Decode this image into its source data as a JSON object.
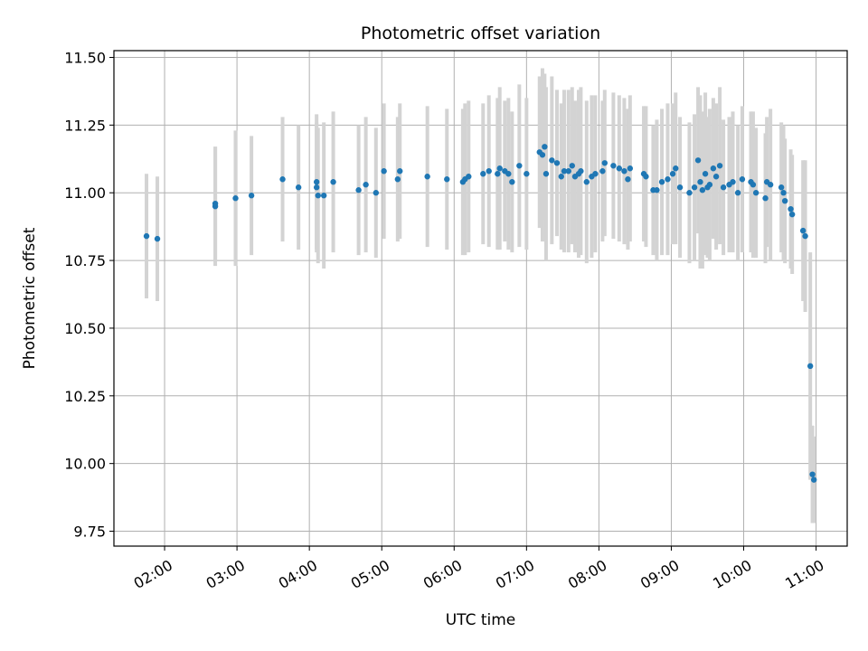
{
  "chart_data": {
    "type": "scatter",
    "title": "Photometric offset variation",
    "xlabel": "UTC time",
    "ylabel": "Photometric offset",
    "x_unit": "hours (UTC)",
    "xlim": [
      1.3,
      11.43
    ],
    "ylim": [
      9.695,
      11.525
    ],
    "xticks": [
      2,
      3,
      4,
      5,
      6,
      7,
      8,
      9,
      10,
      11
    ],
    "xtick_labels": [
      "02:00",
      "03:00",
      "04:00",
      "05:00",
      "06:00",
      "07:00",
      "08:00",
      "09:00",
      "10:00",
      "11:00"
    ],
    "yticks": [
      9.75,
      10.0,
      10.25,
      10.5,
      10.75,
      11.0,
      11.25,
      11.5
    ],
    "ytick_labels": [
      "9.75",
      "10.00",
      "10.25",
      "10.50",
      "10.75",
      "11.00",
      "11.25",
      "11.50"
    ],
    "grid": true,
    "colors": {
      "point": "#1f77b4",
      "errorbar": "#d3d3d3",
      "grid": "#b0b0b0"
    },
    "series": [
      {
        "name": "offset",
        "x": [
          1.75,
          1.9,
          2.7,
          2.7,
          2.98,
          3.2,
          3.63,
          3.85,
          4.1,
          4.1,
          4.12,
          4.2,
          4.33,
          4.68,
          4.78,
          4.92,
          5.03,
          5.22,
          5.25,
          5.63,
          5.9,
          6.12,
          6.15,
          6.2,
          6.4,
          6.48,
          6.6,
          6.63,
          6.7,
          6.75,
          6.8,
          6.9,
          7.0,
          7.18,
          7.22,
          7.25,
          7.27,
          7.35,
          7.42,
          7.48,
          7.52,
          7.58,
          7.63,
          7.67,
          7.72,
          7.75,
          7.83,
          7.9,
          7.95,
          8.05,
          8.08,
          8.2,
          8.28,
          8.35,
          8.4,
          8.43,
          8.62,
          8.65,
          8.75,
          8.8,
          8.87,
          8.95,
          9.02,
          9.06,
          9.12,
          9.25,
          9.32,
          9.37,
          9.4,
          9.43,
          9.47,
          9.5,
          9.53,
          9.58,
          9.62,
          9.67,
          9.72,
          9.8,
          9.85,
          9.92,
          9.98,
          10.1,
          10.13,
          10.17,
          10.3,
          10.32,
          10.37,
          10.52,
          10.55,
          10.57,
          10.65,
          10.67,
          10.82,
          10.85,
          10.92,
          10.95,
          10.97
        ],
        "y": [
          10.84,
          10.83,
          10.95,
          10.96,
          10.98,
          10.99,
          11.05,
          11.02,
          11.04,
          11.02,
          10.99,
          10.99,
          11.04,
          11.01,
          11.03,
          11.0,
          11.08,
          11.05,
          11.08,
          11.06,
          11.05,
          11.04,
          11.05,
          11.06,
          11.07,
          11.08,
          11.07,
          11.09,
          11.08,
          11.07,
          11.04,
          11.1,
          11.07,
          11.15,
          11.14,
          11.17,
          11.07,
          11.12,
          11.11,
          11.06,
          11.08,
          11.08,
          11.1,
          11.06,
          11.07,
          11.08,
          11.04,
          11.06,
          11.07,
          11.08,
          11.11,
          11.1,
          11.09,
          11.08,
          11.05,
          11.09,
          11.07,
          11.06,
          11.01,
          11.01,
          11.04,
          11.05,
          11.07,
          11.09,
          11.02,
          11.0,
          11.02,
          11.12,
          11.04,
          11.01,
          11.07,
          11.02,
          11.03,
          11.09,
          11.06,
          11.1,
          11.02,
          11.03,
          11.04,
          11.0,
          11.05,
          11.04,
          11.03,
          11.0,
          10.98,
          11.04,
          11.03,
          11.02,
          11.0,
          10.97,
          10.94,
          10.92,
          10.86,
          10.84,
          10.36,
          9.96,
          9.94
        ],
        "yerr": [
          0.23,
          0.23,
          0.22,
          0.21,
          0.25,
          0.22,
          0.23,
          0.23,
          0.25,
          0.24,
          0.25,
          0.27,
          0.26,
          0.24,
          0.25,
          0.24,
          0.25,
          0.23,
          0.25,
          0.26,
          0.26,
          0.27,
          0.28,
          0.28,
          0.26,
          0.28,
          0.28,
          0.3,
          0.26,
          0.28,
          0.26,
          0.3,
          0.28,
          0.28,
          0.32,
          0.27,
          0.32,
          0.31,
          0.27,
          0.27,
          0.3,
          0.3,
          0.29,
          0.28,
          0.31,
          0.31,
          0.3,
          0.3,
          0.29,
          0.26,
          0.27,
          0.27,
          0.27,
          0.27,
          0.26,
          0.27,
          0.25,
          0.26,
          0.24,
          0.26,
          0.27,
          0.28,
          0.26,
          0.28,
          0.26,
          0.26,
          0.27,
          0.27,
          0.32,
          0.29,
          0.3,
          0.26,
          0.28,
          0.26,
          0.27,
          0.29,
          0.25,
          0.25,
          0.26,
          0.25,
          0.27,
          0.26,
          0.27,
          0.24,
          0.24,
          0.24,
          0.28,
          0.24,
          0.25,
          0.23,
          0.22,
          0.22,
          0.26,
          0.28,
          0.42,
          0.18,
          0.16
        ]
      }
    ]
  }
}
